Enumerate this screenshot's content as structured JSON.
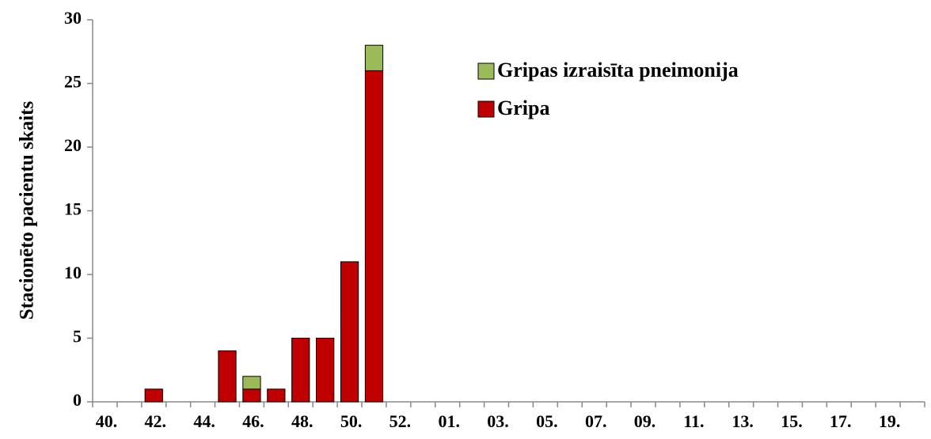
{
  "chart_data": {
    "type": "bar",
    "stacked": true,
    "y_label": "Stacionēto pacientu skaits",
    "categories": [
      "40.",
      null,
      "42.",
      null,
      "44.",
      null,
      "46.",
      null,
      "48.",
      null,
      "50.",
      null,
      "52.",
      null,
      "01.",
      null,
      "03.",
      null,
      "05.",
      null,
      "07.",
      null,
      "09.",
      null,
      "11.",
      null,
      "13.",
      null,
      "15.",
      null,
      "17.",
      null,
      "19.",
      null
    ],
    "series": [
      {
        "name": "Gripa",
        "color": "#c00000",
        "values": [
          0,
          0,
          1,
          0,
          0,
          4,
          1,
          1,
          5,
          5,
          11,
          26,
          0,
          0,
          0,
          0,
          0,
          0,
          0,
          0,
          0,
          0,
          0,
          0,
          0,
          0,
          0,
          0,
          0,
          0,
          0,
          0,
          0,
          0
        ]
      },
      {
        "name": "Gripas izraisīta pneimonija",
        "color": "#9bbb59",
        "values": [
          0,
          0,
          0,
          0,
          0,
          0,
          1,
          0,
          0,
          0,
          0,
          2,
          0,
          0,
          0,
          0,
          0,
          0,
          0,
          0,
          0,
          0,
          0,
          0,
          0,
          0,
          0,
          0,
          0,
          0,
          0,
          0,
          0,
          0
        ]
      }
    ],
    "ylim": [
      0,
      30
    ],
    "yticks": [
      0,
      5,
      10,
      15,
      20,
      25,
      30
    ],
    "grid": false,
    "legend": "upper center"
  }
}
